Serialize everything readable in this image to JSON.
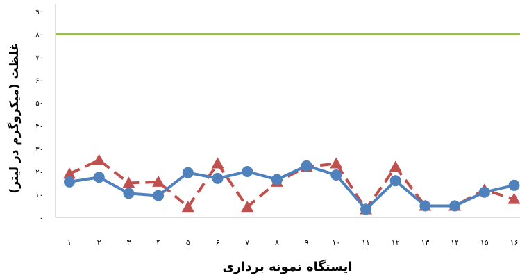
{
  "chart_data": {
    "type": "line",
    "title": "",
    "xlabel": "ایستگاه نمونه برداری",
    "ylabel": "غلظت (میکروگرم در لیتر)",
    "categories": [
      "۱",
      "۲",
      "۳",
      "۴",
      "۵",
      "۶",
      "۷",
      "۸",
      "۹",
      "۱۰",
      "۱۱",
      "۱۲",
      "۱۳",
      "۱۴",
      "۱۵",
      "۱۶"
    ],
    "yticks": [
      "۰",
      "۱۰",
      "۲۰",
      "۳۰",
      "۴۰",
      "۵۰",
      "۶۰",
      "۷۰",
      "۸۰",
      "۹۰"
    ],
    "ylim": [
      0,
      90
    ],
    "grid": false,
    "legend": "none",
    "series": [
      {
        "style": "solid-circle",
        "color": "#4F81BD",
        "values": [
          15.5,
          17.5,
          10.5,
          9.5,
          19.5,
          17,
          20,
          16.5,
          22.5,
          18.5,
          3.5,
          16,
          5,
          5,
          11,
          14
        ]
      },
      {
        "style": "dashed-triangle",
        "color": "#C0504D",
        "values": [
          19,
          25,
          15,
          15.5,
          4.5,
          23.5,
          4.5,
          15.5,
          22,
          23.5,
          3.5,
          22,
          5,
          5,
          12,
          8
        ]
      }
    ],
    "reference_line": {
      "value": 80,
      "color": "#9BBB59"
    }
  }
}
